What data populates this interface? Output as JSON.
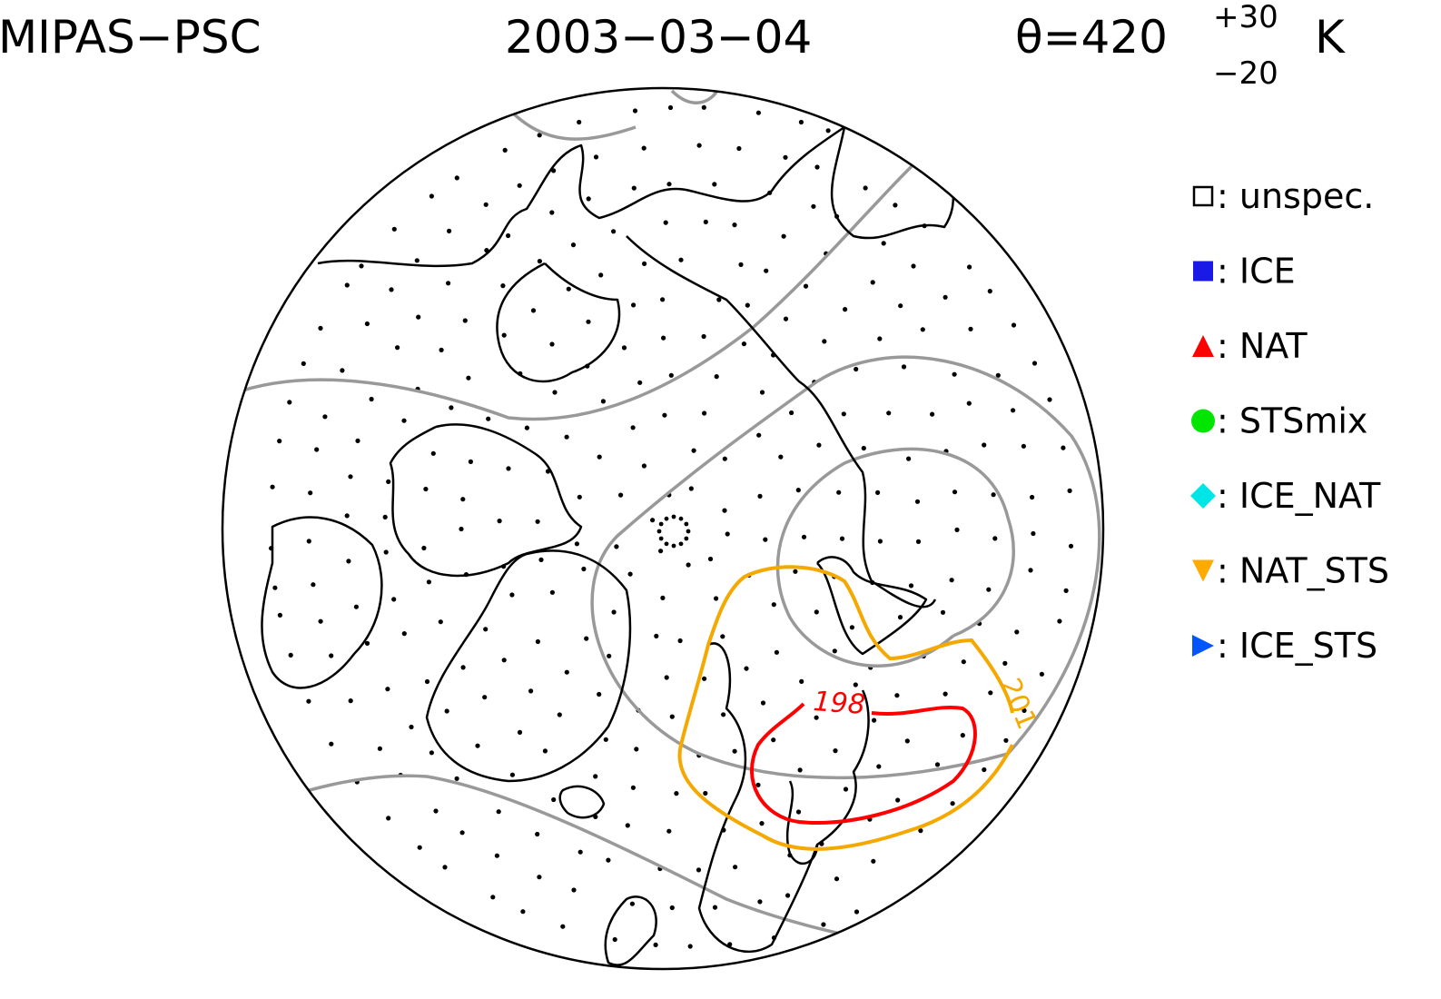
{
  "header": {
    "title": "MIPAS−PSC",
    "date": "2003−03−04",
    "theta": "θ=420",
    "theta_plus": "+30",
    "theta_minus": "−20",
    "unit": "K"
  },
  "legend": {
    "items": [
      {
        "label": ": unspec.",
        "marker": "square-open",
        "color": "#000000"
      },
      {
        "label": ": ICE",
        "marker": "square",
        "color": "#1a1ae6"
      },
      {
        "label": ": NAT",
        "marker": "triangle-up",
        "color": "#ff0000"
      },
      {
        "label": ": STSmix",
        "marker": "circle",
        "color": "#00e600"
      },
      {
        "label": ": ICE_NAT",
        "marker": "diamond",
        "color": "#00e6e6"
      },
      {
        "label": ": NAT_STS",
        "marker": "triangle-down",
        "color": "#ffaa00"
      },
      {
        "label": ": ICE_STS",
        "marker": "triangle-right",
        "color": "#0055ff"
      }
    ]
  },
  "contours": [
    {
      "label": "198",
      "color": "#ff0000"
    },
    {
      "label": "201",
      "color": "#f5a800"
    }
  ]
}
